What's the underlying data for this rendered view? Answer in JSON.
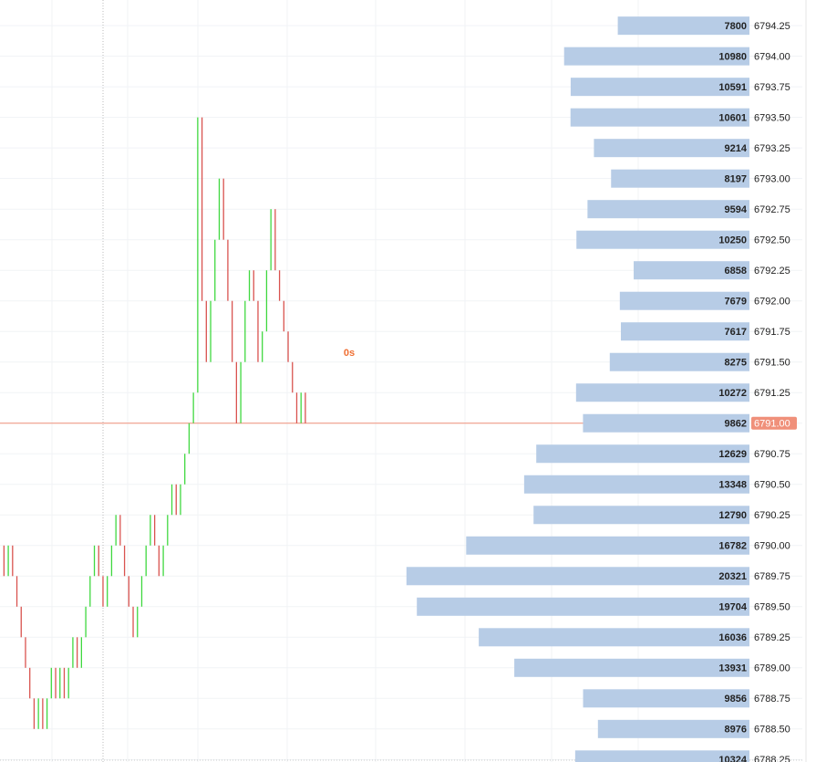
{
  "chart_data": [
    {
      "type": "profile",
      "categories": [
        "6794.25",
        "6794.00",
        "6793.75",
        "6793.50",
        "6793.25",
        "6793.00",
        "6792.75",
        "6792.50",
        "6792.25",
        "6792.00",
        "6791.75",
        "6791.50",
        "6791.25",
        "6791.00",
        "6790.75",
        "6790.50",
        "6790.25",
        "6790.00",
        "6789.75",
        "6789.50",
        "6789.25",
        "6789.00",
        "6788.75",
        "6788.50",
        "6788.25"
      ],
      "values": [
        7800,
        10980,
        10591,
        10601,
        9214,
        8197,
        9594,
        10250,
        6858,
        7679,
        7617,
        8275,
        10272,
        9862,
        12629,
        13348,
        12790,
        16782,
        20321,
        19704,
        16036,
        13931,
        9856,
        8976,
        10324
      ],
      "color": "#b7cce6",
      "xlim": [
        0,
        44400
      ],
      "last_price": 6791,
      "last_price_color": "#f0907a"
    },
    {
      "type": "tick",
      "values": [
        6790.0,
        6789.75,
        6790.0,
        6789.75,
        6789.5,
        6789.25,
        6789.0,
        6788.75,
        6788.5,
        6788.75,
        6788.5,
        6788.75,
        6789.0,
        6788.75,
        6789.0,
        6788.75,
        6789.0,
        6789.25,
        6789.0,
        6789.25,
        6789.5,
        6789.75,
        6790.0,
        6789.75,
        6789.5,
        6789.75,
        6790.0,
        6790.25,
        6790.0,
        6789.75,
        6789.5,
        6789.25,
        6789.5,
        6789.75,
        6790.0,
        6790.25,
        6790.0,
        6789.75,
        6790.0,
        6790.25,
        6790.5,
        6790.25,
        6790.5,
        6790.75,
        6791.0,
        6791.25,
        6793.5,
        6792.0,
        6791.5,
        6792.0,
        6792.5,
        6793.0,
        6792.5,
        6792.0,
        6791.5,
        6791.0,
        6791.5,
        6792.0,
        6792.25,
        6792.0,
        6791.5,
        6791.75,
        6792.25,
        6792.75,
        6792.25,
        6792.0,
        6791.75,
        6791.5,
        6791.25,
        6791.0,
        6791.25,
        6791.0
      ],
      "up_color": "#3fd83f",
      "down_color": "#d9534f",
      "ylim": [
        6788.23,
        6794.46
      ],
      "countdown": "0s"
    }
  ]
}
